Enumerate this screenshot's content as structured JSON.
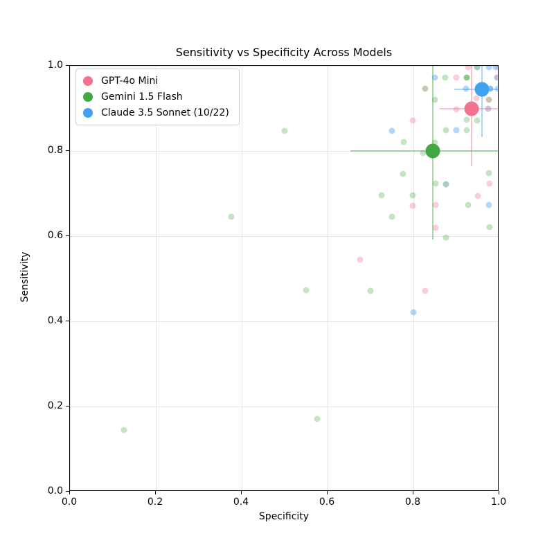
{
  "chart_data": {
    "type": "scatter",
    "title": "Sensitivity vs Specificity Across Models",
    "xlabel": "Specificity",
    "ylabel": "Sensitivity",
    "xlim": [
      0.0,
      1.0
    ],
    "ylim": [
      0.0,
      1.0
    ],
    "xticks": [
      "0.0",
      "0.2",
      "0.4",
      "0.6",
      "0.8",
      "1.0"
    ],
    "yticks": [
      "0.0",
      "0.2",
      "0.4",
      "0.6",
      "0.8",
      "1.0"
    ],
    "grid": true,
    "legend_position": "upper-left",
    "palette": {
      "pink": "#f2728f",
      "green": "#43a843",
      "blue": "#42a0f0"
    },
    "series": [
      {
        "name": "GPT-4o Mini",
        "color_key": "pink",
        "point_opacity": 0.35,
        "mean": {
          "x": 0.935,
          "y": 0.9
        },
        "xerr_range": [
          0.862,
          1.0
        ],
        "yerr_range": [
          0.765,
          1.0
        ],
        "points": [
          {
            "x": 0.675,
            "y": 0.545
          },
          {
            "x": 0.827,
            "y": 0.471
          },
          {
            "x": 0.799,
            "y": 0.872
          },
          {
            "x": 0.799,
            "y": 0.672
          },
          {
            "x": 0.851,
            "y": 0.673
          },
          {
            "x": 0.851,
            "y": 0.62
          },
          {
            "x": 0.9,
            "y": 0.898
          },
          {
            "x": 0.9,
            "y": 0.972
          },
          {
            "x": 0.927,
            "y": 0.997
          },
          {
            "x": 0.947,
            "y": 0.923
          },
          {
            "x": 0.95,
            "y": 0.694
          },
          {
            "x": 0.977,
            "y": 0.723
          },
          {
            "x": 0.998,
            "y": 0.997
          }
        ]
      },
      {
        "name": "Gemini 1.5 Flash",
        "color_key": "green",
        "point_opacity": 0.32,
        "mean": {
          "x": 0.845,
          "y": 0.8
        },
        "xerr_range": [
          0.653,
          1.0
        ],
        "yerr_range": [
          0.592,
          1.0
        ],
        "points": [
          {
            "x": 0.126,
            "y": 0.145
          },
          {
            "x": 0.376,
            "y": 0.646
          },
          {
            "x": 0.5,
            "y": 0.847
          },
          {
            "x": 0.55,
            "y": 0.473
          },
          {
            "x": 0.576,
            "y": 0.171
          },
          {
            "x": 0.7,
            "y": 0.471
          },
          {
            "x": 0.726,
            "y": 0.696
          },
          {
            "x": 0.75,
            "y": 0.645
          },
          {
            "x": 0.776,
            "y": 0.746
          },
          {
            "x": 0.777,
            "y": 0.821
          },
          {
            "x": 0.799,
            "y": 0.696
          },
          {
            "x": 0.823,
            "y": 0.795
          },
          {
            "x": 0.85,
            "y": 0.82
          },
          {
            "x": 0.852,
            "y": 0.723
          },
          {
            "x": 0.85,
            "y": 0.92
          },
          {
            "x": 0.874,
            "y": 0.972
          },
          {
            "x": 0.876,
            "y": 0.849
          },
          {
            "x": 0.876,
            "y": 0.597
          },
          {
            "x": 0.924,
            "y": 0.873
          },
          {
            "x": 0.924,
            "y": 0.849
          },
          {
            "x": 0.927,
            "y": 0.673
          },
          {
            "x": 0.948,
            "y": 0.871
          },
          {
            "x": 0.976,
            "y": 0.748
          },
          {
            "x": 0.977,
            "y": 0.621
          }
        ]
      },
      {
        "name": "Claude 3.5 Sonnet (10/22)",
        "color_key": "blue",
        "point_opacity": 0.42,
        "mean": {
          "x": 0.96,
          "y": 0.945
        },
        "xerr_range": [
          0.895,
          1.0
        ],
        "yerr_range": [
          0.833,
          1.0
        ],
        "points": [
          {
            "x": 0.75,
            "y": 0.847
          },
          {
            "x": 0.8,
            "y": 0.421
          },
          {
            "x": 0.85,
            "y": 0.972
          },
          {
            "x": 0.9,
            "y": 0.849
          },
          {
            "x": 0.922,
            "y": 0.947
          },
          {
            "x": 0.976,
            "y": 0.673
          },
          {
            "x": 0.997,
            "y": 0.947
          },
          {
            "x": 0.976,
            "y": 0.997
          },
          {
            "x": 0.992,
            "y": 0.997
          }
        ]
      }
    ],
    "overlap_points": [
      {
        "x": 0.948,
        "y": 0.997,
        "color": "#4f9a8c",
        "opacity": 0.55
      },
      {
        "x": 0.876,
        "y": 0.722,
        "color": "#4f9a8c",
        "opacity": 0.5
      },
      {
        "x": 0.827,
        "y": 0.947,
        "color": "#a89f78",
        "opacity": 0.6
      },
      {
        "x": 0.976,
        "y": 0.92,
        "color": "#a89f78",
        "opacity": 0.6
      },
      {
        "x": 0.995,
        "y": 0.972,
        "color": "#9b8fc0",
        "opacity": 0.6
      },
      {
        "x": 0.974,
        "y": 0.899,
        "color": "#9b8fc0",
        "opacity": 0.55
      },
      {
        "x": 0.924,
        "y": 0.972,
        "color": "#43a843",
        "opacity": 0.62
      },
      {
        "x": 0.979,
        "y": 0.947,
        "color": "#42a0f0",
        "opacity": 0.65
      }
    ]
  }
}
